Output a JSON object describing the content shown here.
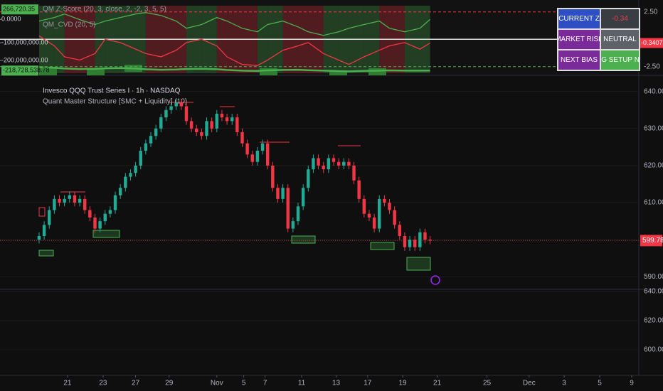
{
  "chart_data": [
    {
      "type": "line",
      "x": [
        0,
        3,
        5,
        8,
        11,
        13,
        16,
        19,
        21,
        24,
        27,
        29,
        32,
        35,
        37,
        40,
        43,
        45,
        48,
        51,
        53,
        56,
        59,
        61,
        64,
        67,
        69,
        72,
        75,
        77
      ],
      "xlim": [
        -7.7,
        118.1
      ],
      "ylim": [
        -3.1,
        3.1
      ],
      "yticks": [
        {
          "value": 2.5,
          "label": "2.50"
        },
        {
          "value": -2.5,
          "label": "-2.50"
        }
      ],
      "y2lim": [
        -230000000,
        60000000
      ],
      "y2ticks": [
        {
          "value": 266720.35,
          "label": "266,720.35"
        },
        {
          "value": 0,
          "label": "0.0000"
        },
        {
          "value": -100000000,
          "label": "-100,000,000.00"
        },
        {
          "value": -200000000,
          "label": "-200,000,000.00"
        },
        {
          "value": -218728538.78,
          "label": "-218,728,538.78"
        }
      ],
      "series": [
        {
          "name": "QM Z-Score (20, 3, close, 2, -2, 3, 5, 5)",
          "color": "#f23645",
          "values": [
            0.3,
            -0.6,
            -1.6,
            -1.9,
            -1.3,
            0,
            -0.3,
            -0.9,
            -1.3,
            -1.6,
            -1,
            -0.3,
            0,
            -0.6,
            -1.6,
            -2.3,
            -2.4,
            -1.9,
            -1,
            -0.6,
            -0.3,
            -1.3,
            -1.9,
            -2.3,
            -1.6,
            -1,
            -0.6,
            -0.3,
            -0.9,
            -0.3407
          ]
        },
        {
          "name": "QM_CVD (20, 5)",
          "color": "#4caf50",
          "axis": "y2",
          "values": [
            -7000000,
            8000000,
            23000000,
            -1000000,
            -22000000,
            -7000000,
            8000000,
            23000000,
            29000000,
            17000000,
            -7000000,
            -38000000,
            -22000000,
            8000000,
            -7000000,
            -38000000,
            -53000000,
            -22000000,
            -7000000,
            -32000000,
            -53000000,
            -68000000,
            -53000000,
            -38000000,
            -22000000,
            -7000000,
            -38000000,
            -53000000,
            -38000000,
            266720.35
          ]
        },
        {
          "color": "#4caf50",
          "axis": "y2",
          "values": [
            -205000000,
            -207000000,
            -210000000,
            -212000000,
            -211000000,
            -209000000,
            -208000000,
            -210000000,
            -213000000,
            -215000000,
            -214000000,
            -212000000,
            -211000000,
            -213000000,
            -216000000,
            -219000000,
            -220000000,
            -218000000,
            -216000000,
            -215000000,
            -217000000,
            -219000000,
            -221000000,
            -222000000,
            -220000000,
            -219000000,
            -218000000,
            -219000000,
            -219000000,
            -218728538.78
          ]
        }
      ]
    },
    {
      "type": "candlestick",
      "title": "Invesco QQQ Trust Series I · 1h · NASDAQ",
      "subtitle": "Quant Master Structure [SMC + Liquidity] (10)",
      "up_color": "#22ab94",
      "down_color": "#f23645",
      "grid": true,
      "xlim": [
        -7.7,
        118.1
      ],
      "ylim": [
        587,
        643
      ],
      "yticks": [
        {
          "value": 640,
          "label": "640.00"
        },
        {
          "value": 630,
          "label": "630.00"
        },
        {
          "value": 620,
          "label": "620.00"
        },
        {
          "value": 610,
          "label": "610.00"
        },
        {
          "value": 600,
          "label": "600.00"
        },
        {
          "value": 590,
          "label": "590.00"
        }
      ],
      "open": [
        600,
        601,
        604,
        608,
        611,
        610,
        611,
        612,
        610,
        611,
        608,
        606,
        603,
        605,
        607,
        608,
        612,
        614,
        617,
        618,
        620,
        624,
        626,
        628,
        630,
        633,
        635,
        636,
        637,
        636,
        632,
        630,
        629,
        628,
        632,
        630,
        634,
        633,
        632,
        633,
        629,
        626,
        623,
        621,
        624,
        626,
        620,
        614,
        611,
        614,
        603,
        605,
        609,
        614,
        619,
        622,
        620,
        619,
        622,
        621,
        620,
        621,
        620,
        616,
        611,
        607,
        606,
        603,
        611,
        610,
        608,
        604,
        601,
        598,
        600,
        598,
        602,
        600
      ],
      "high": [
        602,
        605,
        609,
        612,
        612,
        612,
        613,
        613,
        612,
        612,
        609,
        607,
        606,
        608,
        609,
        613,
        615,
        618,
        619,
        621,
        625,
        627,
        629,
        631,
        634,
        636,
        637,
        638,
        638,
        637,
        633,
        631,
        630,
        633,
        633,
        635,
        635,
        634,
        634,
        634,
        630,
        627,
        624,
        625,
        627,
        627,
        621,
        615,
        615,
        615,
        606,
        610,
        615,
        620,
        623,
        623,
        621,
        623,
        623,
        622,
        622,
        622,
        621,
        617,
        612,
        608,
        607,
        612,
        612,
        611,
        609,
        605,
        602,
        601,
        601,
        603,
        603,
        601
      ],
      "low": [
        599,
        600,
        603,
        607,
        609,
        609,
        610,
        609,
        609,
        607,
        605,
        602,
        602,
        604,
        606,
        607,
        611,
        613,
        616,
        617,
        619,
        623,
        625,
        627,
        629,
        632,
        634,
        635,
        635,
        631,
        629,
        628,
        627,
        627,
        629,
        629,
        632,
        631,
        631,
        628,
        625,
        622,
        620,
        620,
        623,
        619,
        613,
        610,
        610,
        602,
        602,
        604,
        608,
        613,
        618,
        619,
        618,
        618,
        620,
        619,
        619,
        619,
        615,
        610,
        606,
        605,
        602,
        602,
        609,
        607,
        603,
        600,
        597,
        597,
        597,
        597,
        599,
        598.78
      ],
      "close": [
        601,
        604,
        608,
        611,
        610,
        611,
        612,
        610,
        611,
        608,
        606,
        603,
        605,
        607,
        608,
        612,
        614,
        617,
        618,
        620,
        624,
        626,
        628,
        630,
        633,
        635,
        636,
        637,
        636,
        632,
        630,
        629,
        628,
        632,
        630,
        634,
        633,
        632,
        633,
        629,
        626,
        623,
        621,
        624,
        626,
        620,
        614,
        611,
        614,
        603,
        605,
        609,
        614,
        619,
        622,
        620,
        619,
        622,
        621,
        620,
        621,
        620,
        616,
        611,
        607,
        606,
        603,
        611,
        610,
        608,
        604,
        601,
        598,
        600,
        598,
        602,
        600,
        599.78
      ]
    },
    {
      "type": "line",
      "xlim": [
        -7.7,
        118.1
      ],
      "ylim": [
        582.5,
        641
      ],
      "yticks": [
        {
          "value": 640,
          "label": "640.00"
        },
        {
          "value": 620,
          "label": "620.00"
        },
        {
          "value": 600,
          "label": "600.00"
        }
      ],
      "xticks": [
        {
          "value": 5.6,
          "label": "21"
        },
        {
          "value": 12.6,
          "label": "23"
        },
        {
          "value": 19.0,
          "label": "27"
        },
        {
          "value": 25.6,
          "label": "29"
        },
        {
          "value": 35.0,
          "label": "Nov"
        },
        {
          "value": 40.3,
          "label": "5"
        },
        {
          "value": 44.5,
          "label": "7"
        },
        {
          "value": 51.7,
          "label": "11"
        },
        {
          "value": 58.5,
          "label": "13"
        },
        {
          "value": 64.7,
          "label": "17"
        },
        {
          "value": 71.6,
          "label": "19"
        },
        {
          "value": 78.4,
          "label": "21"
        },
        {
          "value": 88.2,
          "label": "25"
        },
        {
          "value": 96.5,
          "label": "Dec"
        },
        {
          "value": 103.4,
          "label": "3"
        },
        {
          "value": 110.4,
          "label": "5"
        },
        {
          "value": 116.7,
          "label": "9"
        }
      ],
      "series": []
    }
  ],
  "table": {
    "rows": [
      [
        "CURRENT Z",
        "-0.34"
      ],
      [
        "MARKET RISK",
        "NEUTRAL"
      ],
      [
        "NEXT BIAS",
        "LONG SETUP NEXT"
      ]
    ]
  }
}
